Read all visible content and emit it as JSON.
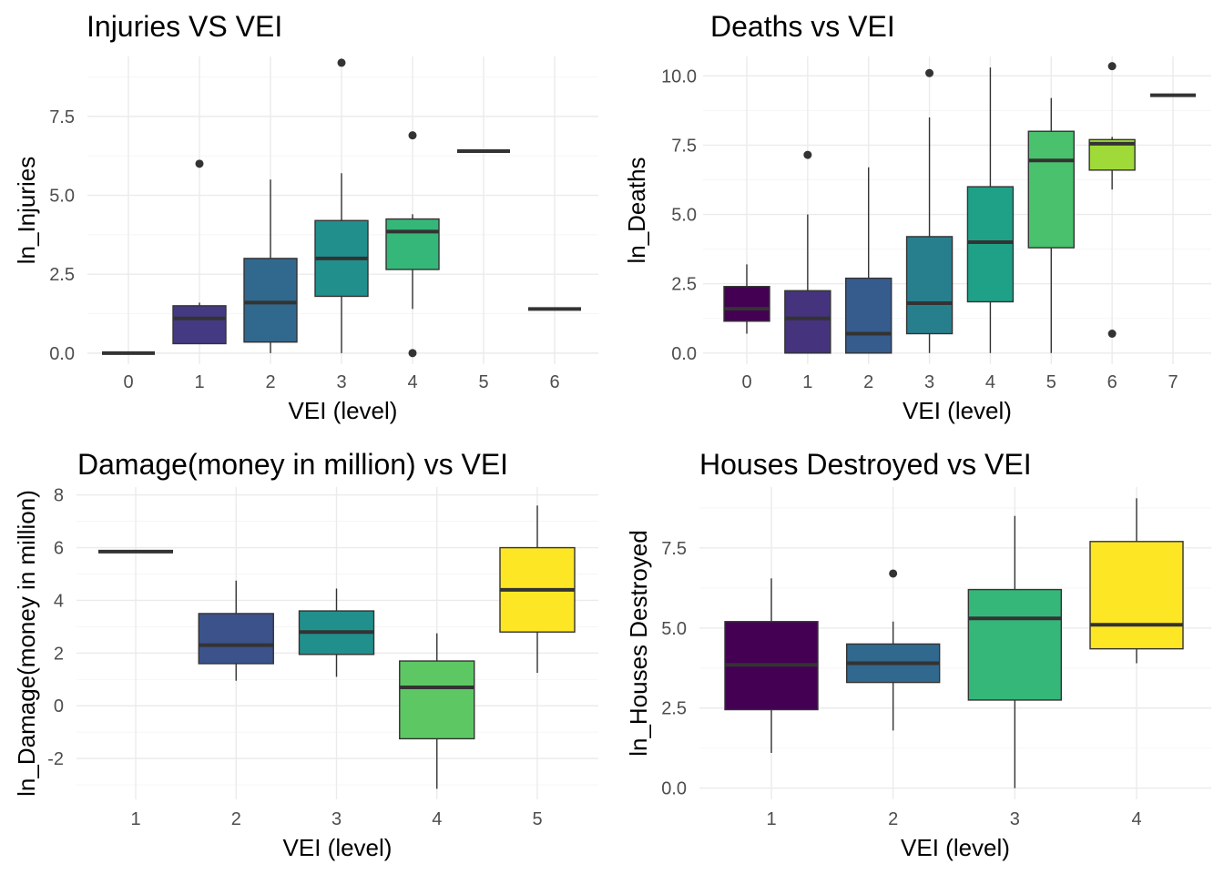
{
  "chart_data": [
    {
      "type": "boxplot",
      "title": "Injuries VS VEI",
      "xlabel": "VEI (level)",
      "ylabel": "ln_Injuries",
      "categories": [
        "0",
        "1",
        "2",
        "3",
        "4",
        "5",
        "6"
      ],
      "ylim": [
        -0.35,
        9.4
      ],
      "yticks": [
        0.0,
        2.5,
        5.0,
        7.5
      ],
      "ytick_labels": [
        "0.0",
        "2.5",
        "5.0",
        "7.5"
      ],
      "boxes": [
        {
          "x": "0",
          "q1": 0.0,
          "median": 0.0,
          "q3": 0.0,
          "whisker_low": 0.0,
          "whisker_high": 0.0,
          "outliers": [],
          "color": "#440154"
        },
        {
          "x": "1",
          "q1": 0.3,
          "median": 1.1,
          "q3": 1.5,
          "whisker_low": 0.3,
          "whisker_high": 1.6,
          "outliers": [
            6.0
          ],
          "color": "#443a83"
        },
        {
          "x": "2",
          "q1": 0.35,
          "median": 1.6,
          "q3": 3.0,
          "whisker_low": 0.0,
          "whisker_high": 5.5,
          "outliers": [],
          "color": "#31688e"
        },
        {
          "x": "3",
          "q1": 1.8,
          "median": 3.0,
          "q3": 4.2,
          "whisker_low": 0.0,
          "whisker_high": 5.7,
          "outliers": [
            9.2
          ],
          "color": "#21908d"
        },
        {
          "x": "4",
          "q1": 2.65,
          "median": 3.85,
          "q3": 4.25,
          "whisker_low": 1.4,
          "whisker_high": 4.4,
          "outliers": [
            6.9,
            0.0
          ],
          "color": "#35b779"
        },
        {
          "x": "5",
          "q1": 6.4,
          "median": 6.4,
          "q3": 6.4,
          "whisker_low": 6.4,
          "whisker_high": 6.4,
          "outliers": [],
          "color": "#8fd744"
        },
        {
          "x": "6",
          "q1": 1.4,
          "median": 1.4,
          "q3": 1.4,
          "whisker_low": 1.4,
          "whisker_high": 1.4,
          "outliers": [],
          "color": "#fde725"
        }
      ],
      "grid": true,
      "legend": "none"
    },
    {
      "type": "boxplot",
      "title": "Deaths vs VEI",
      "xlabel": "VEI (level)",
      "ylabel": "ln_Deaths",
      "categories": [
        "0",
        "1",
        "2",
        "3",
        "4",
        "5",
        "6",
        "7"
      ],
      "ylim": [
        -0.4,
        10.7
      ],
      "yticks": [
        0.0,
        2.5,
        5.0,
        7.5,
        10.0
      ],
      "ytick_labels": [
        "0.0",
        "2.5",
        "5.0",
        "7.5",
        "10.0"
      ],
      "boxes": [
        {
          "x": "0",
          "q1": 1.15,
          "median": 1.6,
          "q3": 2.4,
          "whisker_low": 0.7,
          "whisker_high": 3.2,
          "outliers": [],
          "color": "#440154"
        },
        {
          "x": "1",
          "q1": 0.0,
          "median": 1.25,
          "q3": 2.25,
          "whisker_low": 0.0,
          "whisker_high": 5.0,
          "outliers": [
            7.15
          ],
          "color": "#46337e"
        },
        {
          "x": "2",
          "q1": 0.0,
          "median": 0.7,
          "q3": 2.7,
          "whisker_low": 0.0,
          "whisker_high": 6.7,
          "outliers": [],
          "color": "#365c8d"
        },
        {
          "x": "3",
          "q1": 0.7,
          "median": 1.8,
          "q3": 4.2,
          "whisker_low": 0.0,
          "whisker_high": 8.5,
          "outliers": [
            10.1
          ],
          "color": "#277f8e"
        },
        {
          "x": "4",
          "q1": 1.85,
          "median": 4.0,
          "q3": 6.0,
          "whisker_low": 0.0,
          "whisker_high": 10.3,
          "outliers": [],
          "color": "#1fa187"
        },
        {
          "x": "5",
          "q1": 3.8,
          "median": 6.95,
          "q3": 8.0,
          "whisker_low": 0.0,
          "whisker_high": 9.2,
          "outliers": [],
          "color": "#4ac16d"
        },
        {
          "x": "6",
          "q1": 6.6,
          "median": 7.55,
          "q3": 7.7,
          "whisker_low": 5.9,
          "whisker_high": 7.8,
          "outliers": [
            10.35,
            0.7
          ],
          "color": "#a0da39"
        },
        {
          "x": "7",
          "q1": 9.3,
          "median": 9.3,
          "q3": 9.3,
          "whisker_low": 9.3,
          "whisker_high": 9.3,
          "outliers": [],
          "color": "#fde725"
        }
      ],
      "grid": true,
      "legend": "none"
    },
    {
      "type": "boxplot",
      "title": "Damage(money in million) vs VEI",
      "xlabel": "VEI (level)",
      "ylabel": "ln_Damage(money in million)",
      "categories": [
        "1",
        "2",
        "3",
        "4",
        "5"
      ],
      "ylim": [
        -3.55,
        8.3
      ],
      "yticks": [
        -2,
        0,
        2,
        4,
        6,
        8
      ],
      "ytick_labels": [
        "-2",
        "0",
        "2",
        "4",
        "6",
        "8"
      ],
      "boxes": [
        {
          "x": "1",
          "q1": 5.85,
          "median": 5.85,
          "q3": 5.85,
          "whisker_low": 5.85,
          "whisker_high": 5.85,
          "outliers": [],
          "color": "#440154"
        },
        {
          "x": "2",
          "q1": 1.6,
          "median": 2.3,
          "q3": 3.5,
          "whisker_low": 0.95,
          "whisker_high": 4.75,
          "outliers": [],
          "color": "#3b528b"
        },
        {
          "x": "3",
          "q1": 1.95,
          "median": 2.8,
          "q3": 3.6,
          "whisker_low": 1.1,
          "whisker_high": 4.45,
          "outliers": [],
          "color": "#21908d"
        },
        {
          "x": "4",
          "q1": -1.25,
          "median": 0.7,
          "q3": 1.7,
          "whisker_low": -3.15,
          "whisker_high": 2.75,
          "outliers": [],
          "color": "#5dc863"
        },
        {
          "x": "5",
          "q1": 2.8,
          "median": 4.4,
          "q3": 6.0,
          "whisker_low": 1.25,
          "whisker_high": 7.6,
          "outliers": [],
          "color": "#fde725"
        }
      ],
      "grid": true,
      "legend": "none"
    },
    {
      "type": "boxplot",
      "title": "Houses Destroyed vs VEI",
      "xlabel": "VEI (level)",
      "ylabel": "ln_Houses Destroyed",
      "categories": [
        "1",
        "2",
        "3",
        "4"
      ],
      "ylim": [
        -0.35,
        9.4
      ],
      "yticks": [
        0.0,
        2.5,
        5.0,
        7.5
      ],
      "ytick_labels": [
        "0.0",
        "2.5",
        "5.0",
        "7.5"
      ],
      "boxes": [
        {
          "x": "1",
          "q1": 2.45,
          "median": 3.85,
          "q3": 5.2,
          "whisker_low": 1.1,
          "whisker_high": 6.55,
          "outliers": [],
          "color": "#440154"
        },
        {
          "x": "2",
          "q1": 3.3,
          "median": 3.9,
          "q3": 4.5,
          "whisker_low": 1.8,
          "whisker_high": 5.2,
          "outliers": [
            6.7
          ],
          "color": "#31688e"
        },
        {
          "x": "3",
          "q1": 2.75,
          "median": 5.3,
          "q3": 6.2,
          "whisker_low": 0.0,
          "whisker_high": 8.5,
          "outliers": [],
          "color": "#35b779"
        },
        {
          "x": "4",
          "q1": 4.35,
          "median": 5.1,
          "q3": 7.7,
          "whisker_low": 3.9,
          "whisker_high": 9.05,
          "outliers": [],
          "color": "#fde725"
        }
      ],
      "grid": true,
      "legend": "none"
    }
  ]
}
